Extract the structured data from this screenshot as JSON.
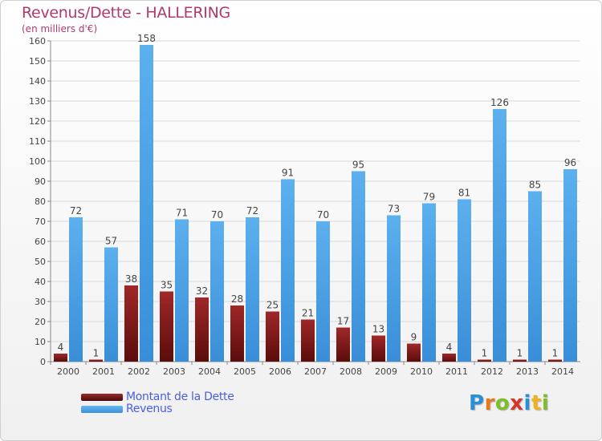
{
  "title": "Revenus/Dette - HALLERING",
  "subtitle": "(en milliers d'€)",
  "logo": {
    "letters": [
      "P",
      "r",
      "o",
      "x",
      "i",
      "t",
      "i"
    ],
    "colors": [
      "#2b8fd6",
      "#e8781c",
      "#7cbf2a",
      "#d9342b",
      "#2b8fd6",
      "#f2b01e",
      "#7cbf2a"
    ]
  },
  "colors": {
    "dette": "#7a1a1a",
    "revenus": "#4a9fe0",
    "title": "#b03a6e",
    "legend_text": "#4a5fe0"
  },
  "chart_data": {
    "type": "bar",
    "title": "Revenus/Dette - HALLERING",
    "subtitle": "(en milliers d'€)",
    "xlabel": "",
    "ylabel": "",
    "ylim": [
      0,
      160
    ],
    "yticks": [
      0,
      10,
      20,
      30,
      40,
      50,
      60,
      70,
      80,
      90,
      100,
      110,
      120,
      130,
      140,
      150,
      160
    ],
    "grid": true,
    "legend_position": "bottom-left",
    "categories": [
      "2000",
      "2001",
      "2002",
      "2003",
      "2004",
      "2005",
      "2006",
      "2007",
      "2008",
      "2009",
      "2010",
      "2011",
      "2012",
      "2013",
      "2014"
    ],
    "series": [
      {
        "name": "Montant de la Dette",
        "values": [
          4,
          1,
          38,
          35,
          32,
          28,
          25,
          21,
          17,
          13,
          9,
          4,
          1,
          1,
          1
        ]
      },
      {
        "name": "Revenus",
        "values": [
          72,
          57,
          158,
          71,
          70,
          72,
          91,
          70,
          95,
          73,
          79,
          81,
          126,
          85,
          96
        ]
      }
    ]
  }
}
